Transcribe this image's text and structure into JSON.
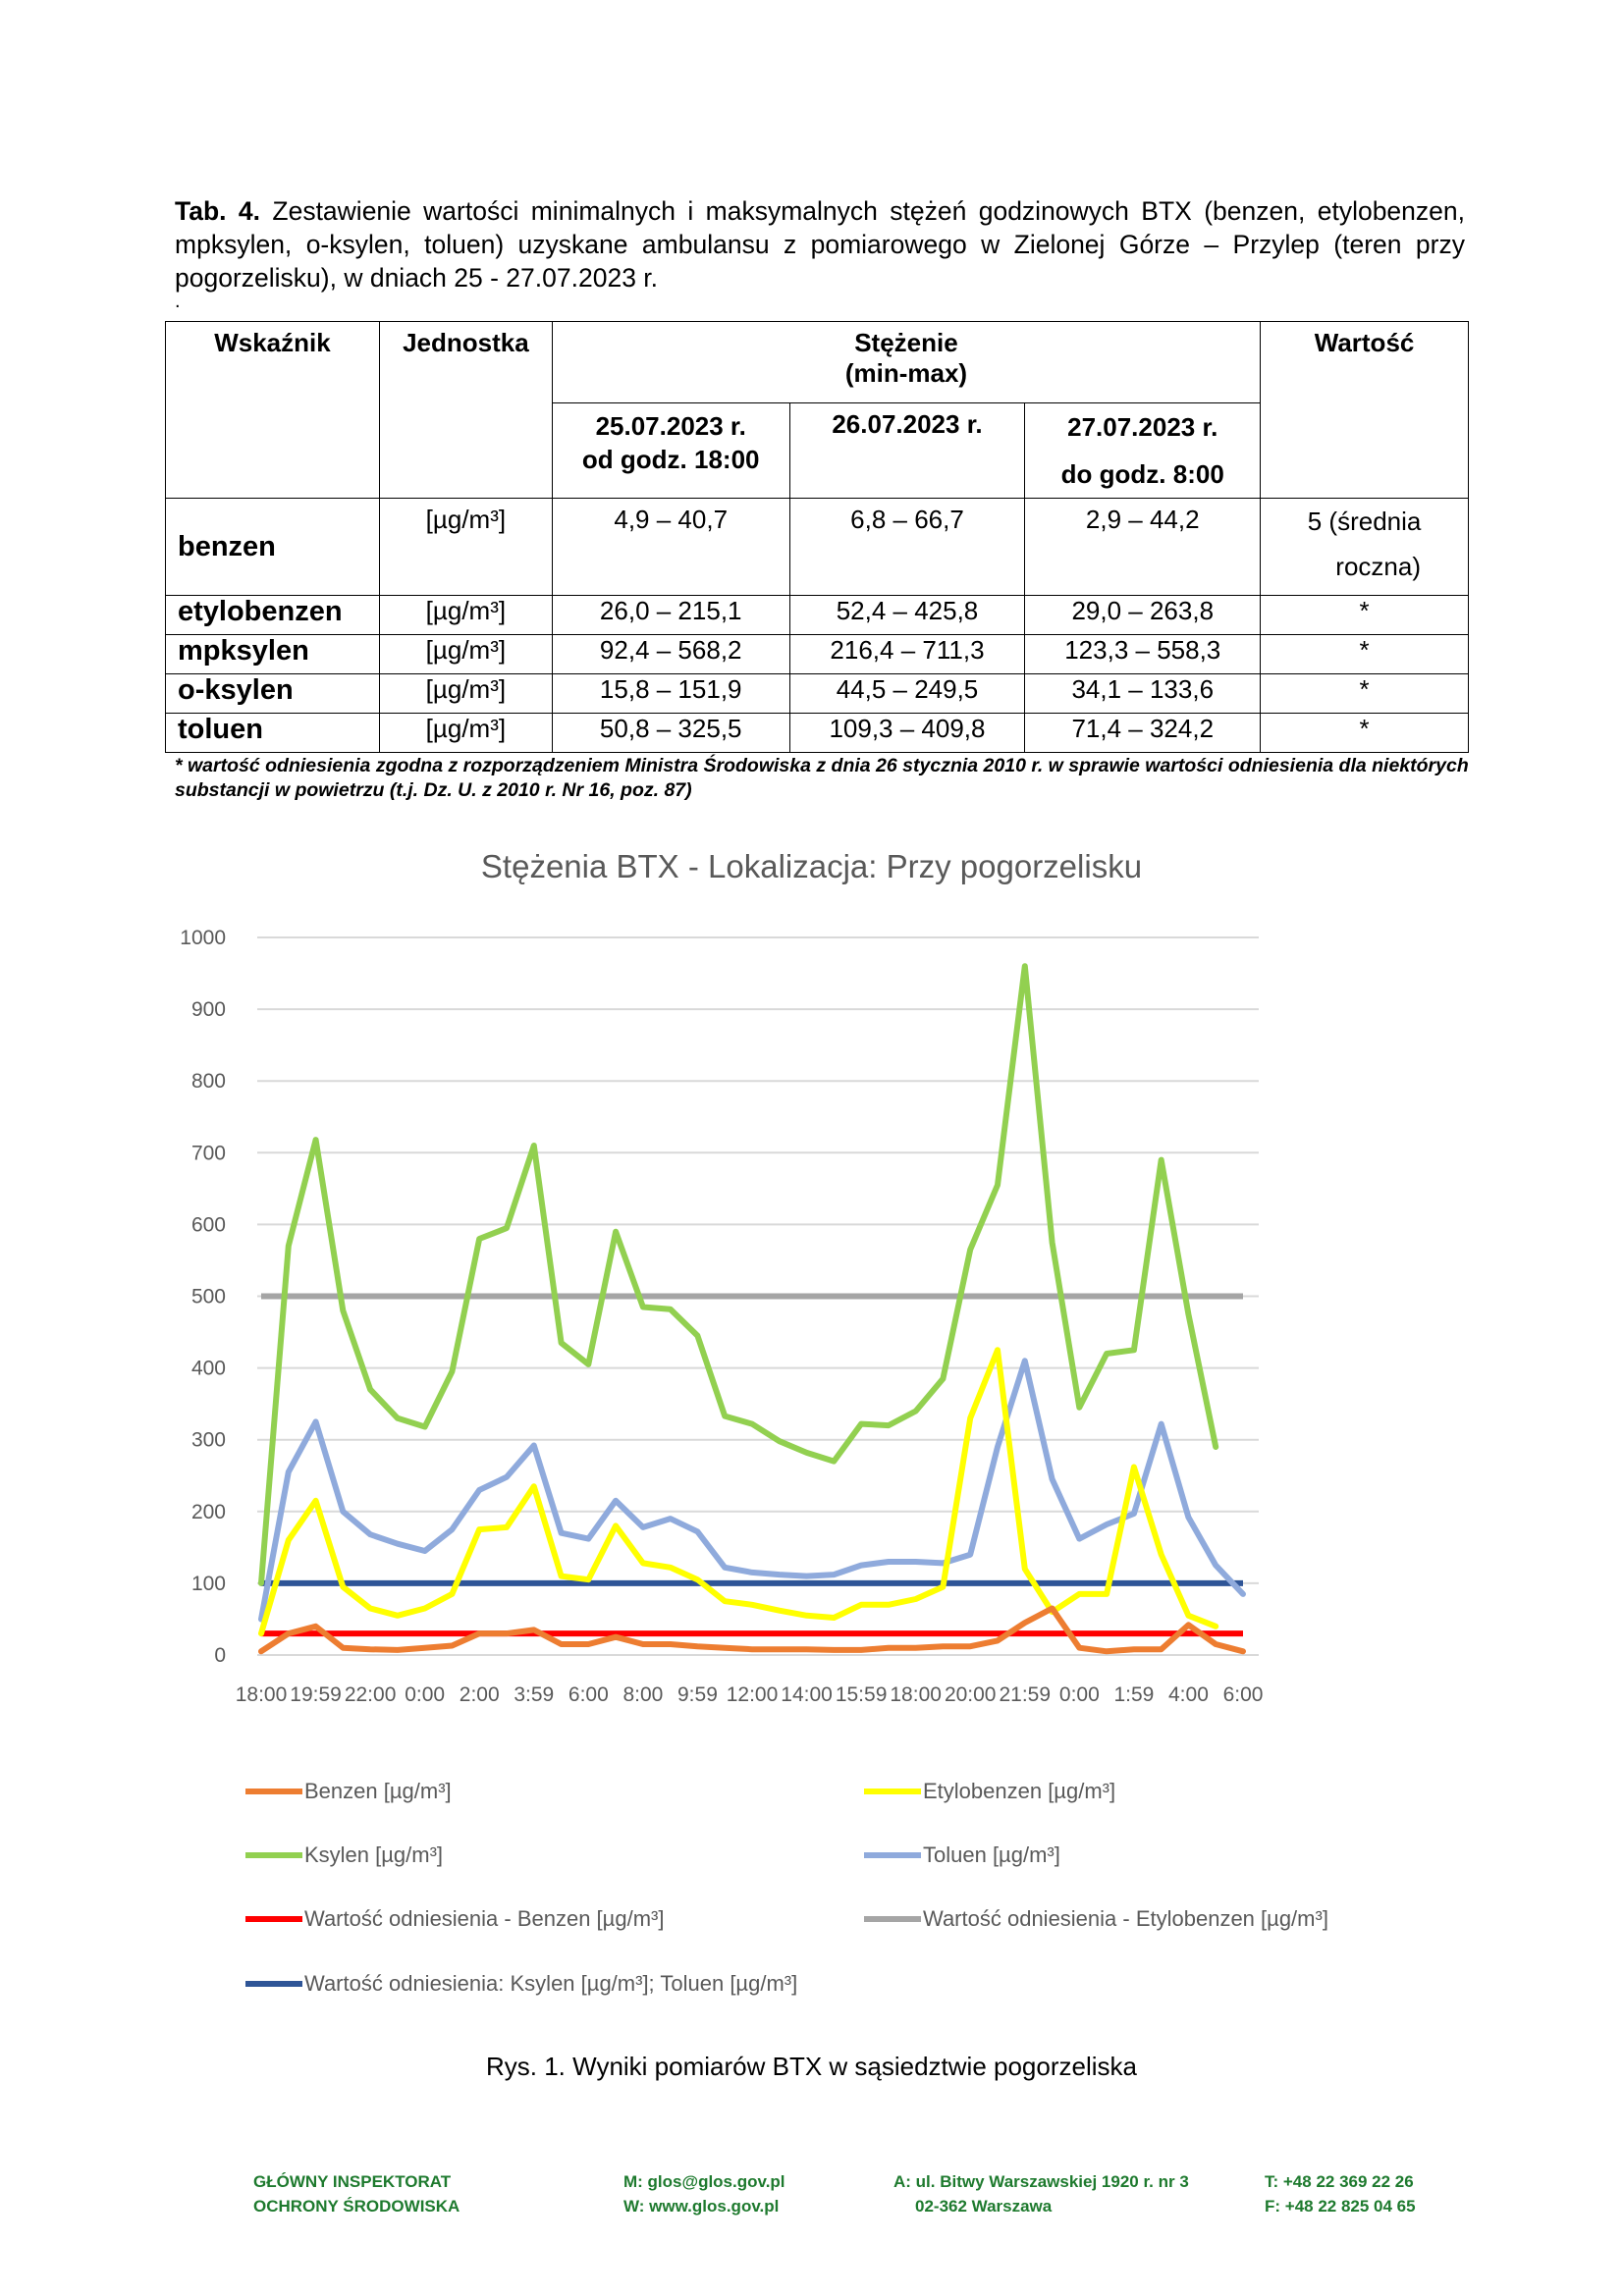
{
  "caption": {
    "label": "Tab. 4.",
    "text": "Zestawienie wartości minimalnych i maksymalnych stężeń godzinowych BTX (benzen, etylobenzen, mpksylen, o-ksylen, toluen) uzyskane ambulansu z pomiarowego w Zielonej Górze – Przylep (teren przy pogorzelisku), w dniach 25 - 27.07.2023 r."
  },
  "stray_dot": ".",
  "table": {
    "headers": {
      "indicator": "Wskaźnik",
      "unit": "Jednostka",
      "concentration_line1": "Stężenie",
      "concentration_line2": "(min-max)",
      "value": "Wartość",
      "day1_line1": "25.07.2023 r.",
      "day1_line2": "od godz. 18:00",
      "day2": "26.07.2023 r.",
      "day3_line1": "27.07.2023 r.",
      "day3_line2": "do godz. 8:00"
    },
    "rows": [
      {
        "name": "benzen",
        "unit": "[µg/m³]",
        "d1": "4,9 – 40,7",
        "d2": "6,8 – 66,7",
        "d3": "2,9 – 44,2",
        "value_line1": "5 (średnia",
        "value_line2": "roczna)"
      },
      {
        "name": "etylobenzen",
        "unit": "[µg/m³]",
        "d1": "26,0 – 215,1",
        "d2": "52,4 – 425,8",
        "d3": "29,0 – 263,8",
        "value": "*"
      },
      {
        "name": "mpksylen",
        "unit": "[µg/m³]",
        "d1": "92,4 – 568,2",
        "d2": "216,4 – 711,3",
        "d3": "123,3 – 558,3",
        "value": "*"
      },
      {
        "name": "o-ksylen",
        "unit": "[µg/m³]",
        "d1": "15,8 – 151,9",
        "d2": "44,5 – 249,5",
        "d3": "34,1 – 133,6",
        "value": "*"
      },
      {
        "name": "toluen",
        "unit": "[µg/m³]",
        "d1": "50,8 – 325,5",
        "d2": "109,3 – 409,8",
        "d3": "71,4 – 324,2",
        "value": "*"
      }
    ]
  },
  "footnote": "* wartość odniesienia zgodna z rozporządzeniem Ministra Środowiska z dnia 26 stycznia 2010 r. w sprawie wartości odniesienia dla niektórych substancji w powietrzu (t.j. Dz. U. z 2010 r. Nr 16, poz. 87)",
  "chart_data": {
    "type": "line",
    "title": "Stężenia BTX - Lokalizacja: Przy pogorzelisku",
    "xlabel": "",
    "ylabel": "",
    "ylim": [
      0,
      1000
    ],
    "yticks": [
      0,
      100,
      200,
      300,
      400,
      500,
      600,
      700,
      800,
      900,
      1000
    ],
    "x_tick_labels": [
      "18:00",
      "19:59",
      "22:00",
      "0:00",
      "2:00",
      "3:59",
      "6:00",
      "8:00",
      "9:59",
      "12:00",
      "14:00",
      "15:59",
      "18:00",
      "20:00",
      "21:59",
      "0:00",
      "1:59",
      "4:00",
      "6:00"
    ],
    "n_points": 37,
    "grid": true,
    "legend_position": "bottom",
    "series": [
      {
        "name": "Benzen [µg/m³]",
        "color": "#ED7D31",
        "values": [
          5,
          30,
          40,
          10,
          8,
          7,
          10,
          13,
          30,
          30,
          35,
          15,
          15,
          25,
          15,
          15,
          12,
          10,
          8,
          8,
          8,
          7,
          7,
          10,
          10,
          12,
          12,
          20,
          45,
          65,
          10,
          5,
          8,
          8,
          42,
          15,
          5
        ]
      },
      {
        "name": "Etylobenzen [µg/m³]",
        "color": "#FFFF00",
        "values": [
          30,
          160,
          215,
          95,
          65,
          55,
          65,
          85,
          175,
          178,
          235,
          110,
          105,
          180,
          128,
          122,
          105,
          75,
          70,
          62,
          55,
          52,
          70,
          70,
          78,
          95,
          330,
          425,
          120,
          60,
          85,
          85,
          262,
          140,
          55,
          40,
          null
        ]
      },
      {
        "name": "Ksylen [µg/m³]",
        "color": "#92D050",
        "values": [
          100,
          570,
          718,
          480,
          370,
          330,
          318,
          395,
          580,
          595,
          710,
          435,
          405,
          590,
          485,
          482,
          445,
          333,
          322,
          298,
          282,
          270,
          322,
          320,
          340,
          385,
          565,
          655,
          960,
          575,
          345,
          420,
          425,
          690,
          475,
          290,
          null
        ]
      },
      {
        "name": "Toluen [µg/m³]",
        "color": "#8FAADC",
        "values": [
          50,
          255,
          325,
          200,
          168,
          155,
          145,
          175,
          230,
          248,
          292,
          170,
          162,
          215,
          178,
          190,
          172,
          122,
          115,
          112,
          110,
          112,
          125,
          130,
          130,
          128,
          140,
          290,
          410,
          245,
          162,
          182,
          197,
          322,
          192,
          125,
          85
        ]
      },
      {
        "name": "Wartość odniesienia - Benzen [µg/m³]",
        "color": "#FF0000",
        "constant": 30
      },
      {
        "name": "Wartość odniesienia - Etylobenzen [µg/m³]",
        "color": "#A5A5A5",
        "constant": 500
      },
      {
        "name": "Wartość odniesienia: Ksylen [µg/m³]; Toluen [µg/m³]",
        "color": "#2F5597",
        "constant": 100
      }
    ]
  },
  "figure_caption": "Rys. 1. Wyniki pomiarów BTX w sąsiedztwie pogorzeliska",
  "footer": {
    "org_line1": "GŁÓWNY INSPEKTORAT",
    "org_line2": "OCHRONY ŚRODOWISKA",
    "email": "M: glos@glos.gov.pl",
    "web": "W: www.glos.gov.pl",
    "address_line1": "A: ul. Bitwy Warszawskiej 1920 r. nr 3",
    "address_line2": "02-362 Warszawa",
    "phone": "T: +48 22 369 22 26",
    "fax": "F: +48 22 825 04 65"
  }
}
